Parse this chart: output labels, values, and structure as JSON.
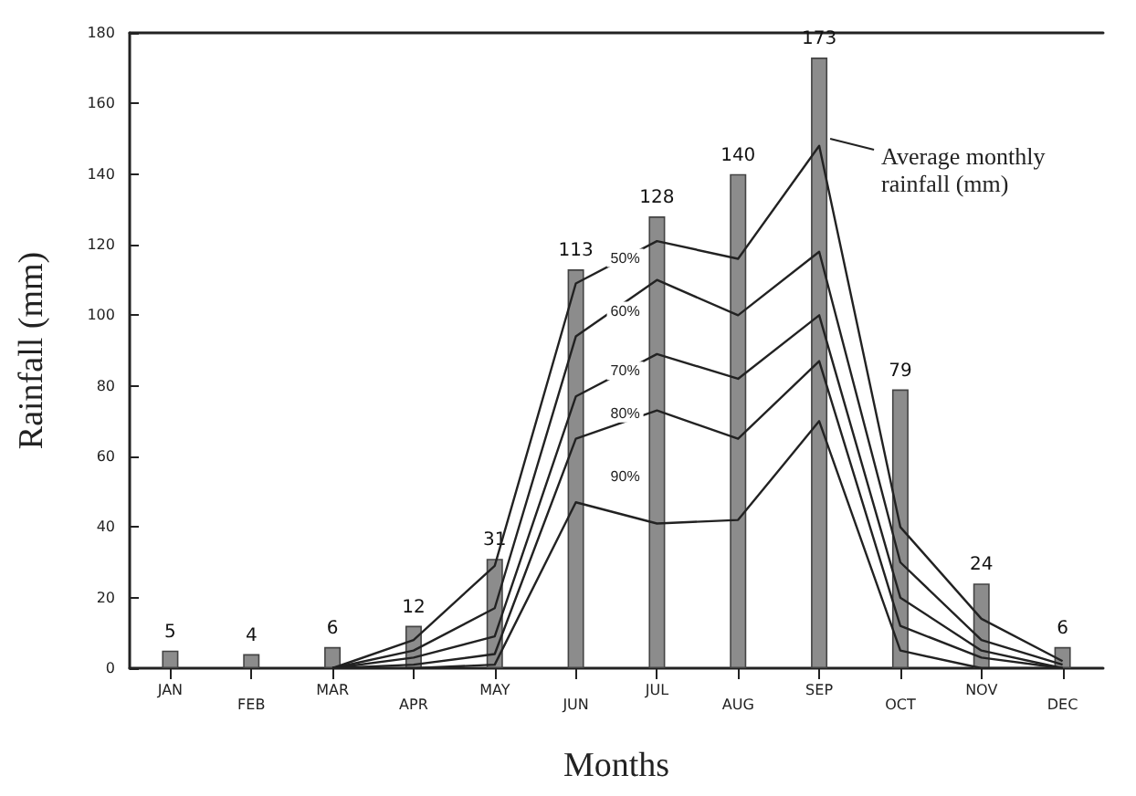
{
  "chart_data": {
    "type": "bar",
    "xlabel": "Months",
    "ylabel": "Rainfall (mm)",
    "categories": [
      "JAN",
      "FEB",
      "MAR",
      "APR",
      "MAY",
      "JUN",
      "JUL",
      "AUG",
      "SEP",
      "OCT",
      "NOV",
      "DEC"
    ],
    "series": [
      {
        "color": "#8c8c8c",
        "values": [
          5,
          4,
          6,
          12,
          31,
          113,
          128,
          140,
          173,
          79,
          24,
          6
        ],
        "value_labels": [
          "5",
          "4",
          "6",
          "12",
          "31",
          "113",
          "128",
          "140",
          "173",
          "79",
          "24",
          "6"
        ]
      },
      {
        "name": "50%",
        "type": "line",
        "color": "#222222",
        "values": [
          null,
          null,
          0,
          8,
          29,
          109,
          121,
          116,
          148,
          40,
          14,
          2
        ]
      },
      {
        "name": "60%",
        "type": "line",
        "color": "#222222",
        "values": [
          null,
          null,
          0,
          5,
          17,
          94,
          110,
          100,
          118,
          30,
          8,
          1
        ]
      },
      {
        "name": "70%",
        "type": "line",
        "color": "#222222",
        "values": [
          null,
          null,
          0,
          3,
          9,
          77,
          89,
          82,
          100,
          20,
          5,
          0
        ]
      },
      {
        "name": "80%",
        "type": "line",
        "color": "#222222",
        "values": [
          null,
          null,
          0,
          1,
          4,
          65,
          73,
          65,
          87,
          12,
          3,
          0
        ]
      },
      {
        "name": "90%",
        "type": "line",
        "color": "#222222",
        "values": [
          null,
          null,
          0,
          0,
          1,
          47,
          41,
          42,
          70,
          5,
          0,
          0
        ]
      }
    ],
    "ylim": [
      0,
      180
    ],
    "yticks": [
      0,
      20,
      40,
      60,
      80,
      100,
      120,
      140,
      160,
      180
    ],
    "grid": false,
    "legend": false,
    "marker": "none",
    "line_style": "solid",
    "annotations": [
      {
        "text": "Average monthly rainfall (mm)",
        "x": "SEP",
        "y": 150
      }
    ]
  }
}
